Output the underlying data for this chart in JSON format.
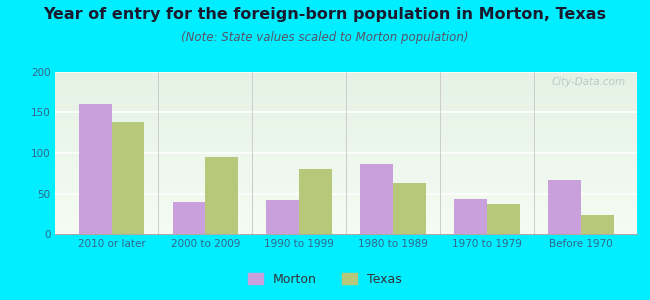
{
  "title": "Year of entry for the foreign-born population in Morton, Texas",
  "subtitle": "(Note: State values scaled to Morton population)",
  "categories": [
    "2010 or later",
    "2000 to 2009",
    "1990 to 1999",
    "1980 to 1989",
    "1970 to 1979",
    "Before 1970"
  ],
  "morton_values": [
    160,
    40,
    42,
    87,
    43,
    67
  ],
  "texas_values": [
    138,
    95,
    80,
    63,
    37,
    24
  ],
  "morton_color": "#c9a0dc",
  "texas_color": "#b8c87a",
  "bg_outer": "#00eeff",
  "plot_bg_color": "#eef5e8",
  "ylim": [
    0,
    200
  ],
  "yticks": [
    0,
    50,
    100,
    150,
    200
  ],
  "bar_width": 0.35,
  "title_fontsize": 11.5,
  "subtitle_fontsize": 8.5,
  "tick_fontsize": 7.5,
  "legend_fontsize": 9,
  "title_color": "#1a1a2e",
  "subtitle_color": "#555566",
  "tick_color": "#336688",
  "watermark_color": "#b0c4c4"
}
